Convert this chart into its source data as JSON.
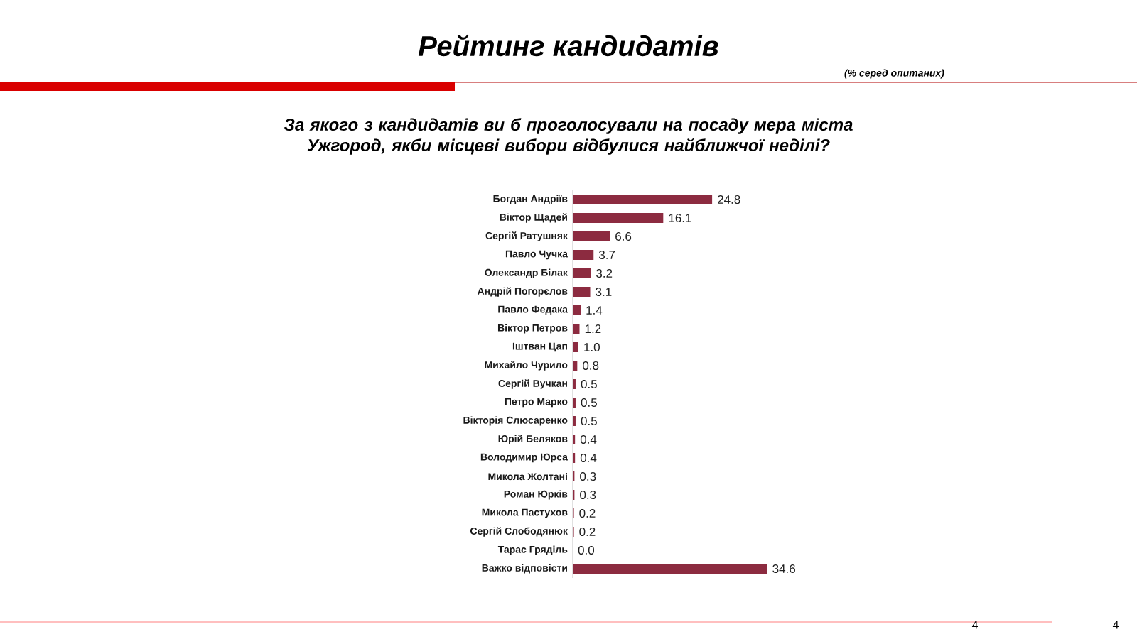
{
  "chart_data": {
    "type": "bar",
    "orientation": "horizontal",
    "title": "Рейтинг кандидатів",
    "subtitle": "За якого з кандидатів ви б проголосували на посаду мера міста Ужгород, якби місцеві вибори відбулися найближчої неділі?",
    "annotations": [
      "(% серед опитаних)",
      "4",
      "4"
    ],
    "categories": [
      "Богдан Андріїв",
      "Віктор Щадей",
      "Сергій Ратушняк",
      "Павло Чучка",
      "Олександр Білак",
      "Андрій Погорєлов",
      "Павло Федака",
      "Віктор Петров",
      "Іштван Цап",
      "Михайло Чурило",
      "Сергій Вучкан",
      "Петро Марко",
      "Вікторія Слюсаренко",
      "Юрій Беляков",
      "Володимир Юрса",
      "Микола Жолтані",
      "Роман Юрків",
      "Микола Пастухов",
      "Сергій Слободянюк",
      "Тарас Гряділь",
      "Важко відповісти"
    ],
    "values": [
      24.8,
      16.1,
      6.6,
      3.7,
      3.2,
      3.1,
      1.4,
      1.2,
      1.0,
      0.8,
      0.5,
      0.5,
      0.5,
      0.4,
      0.4,
      0.3,
      0.3,
      0.2,
      0.2,
      0.0,
      34.6
    ],
    "value_labels": [
      "24.8",
      "16.1",
      "6.6",
      "3.7",
      "3.2",
      "3.1",
      "1.4",
      "1.2",
      "1.0",
      "0.8",
      "0.5",
      "0.5",
      "0.5",
      "0.4",
      "0.4",
      "0.3",
      "0.3",
      "0.2",
      "0.2",
      "0.0",
      "34.6"
    ],
    "color": "#8c2b40"
  }
}
